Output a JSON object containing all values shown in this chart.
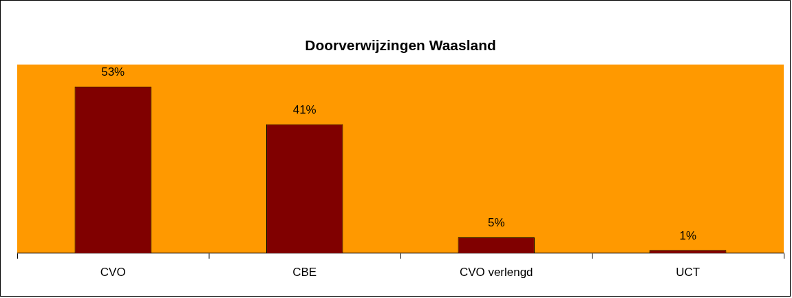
{
  "chart_data": {
    "type": "bar",
    "title": "Doorverwijzingen Waasland",
    "categories": [
      "CVO",
      "CBE",
      "CVO verlengd",
      "UCT"
    ],
    "values": [
      53,
      41,
      5,
      1
    ],
    "value_labels": [
      "53%",
      "41%",
      "5%",
      "1%"
    ],
    "color": "#800000",
    "ylim": [
      0,
      60
    ],
    "tick_labels": "x",
    "grid": false,
    "legend": false
  }
}
